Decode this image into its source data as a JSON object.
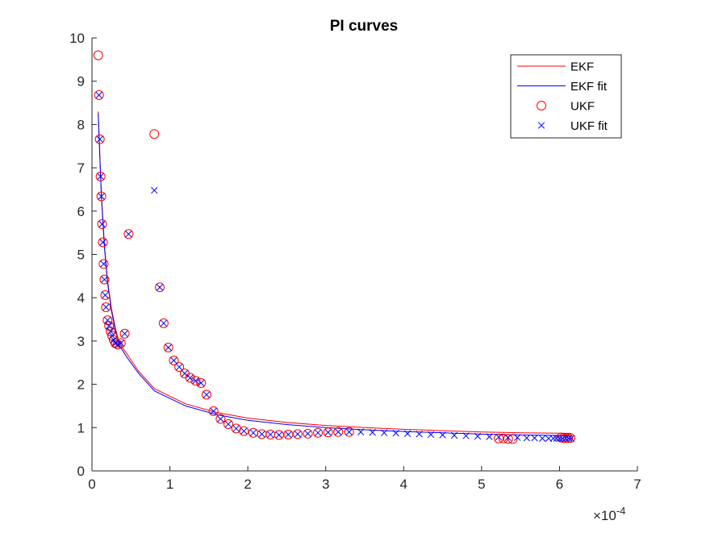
{
  "chart_data": {
    "type": "scatter",
    "title": "PI curves",
    "xlabel": "",
    "ylabel": "",
    "xlim": [
      0,
      7
    ],
    "ylim": [
      0,
      10
    ],
    "x_exponent_label": "×10",
    "x_exponent_power": "-4",
    "x_ticks": [
      0,
      1,
      2,
      3,
      4,
      5,
      6,
      7
    ],
    "y_ticks": [
      0,
      1,
      2,
      3,
      4,
      5,
      6,
      7,
      8,
      9,
      10
    ],
    "grid": false,
    "legend_position": "top-right",
    "series": [
      {
        "name": "EKF",
        "kind": "line",
        "color": "#ff0000",
        "points": [
          [
            0.08,
            8.3
          ],
          [
            0.12,
            6.4
          ],
          [
            0.16,
            5.2
          ],
          [
            0.2,
            4.4
          ],
          [
            0.25,
            3.75
          ],
          [
            0.3,
            3.3
          ],
          [
            0.35,
            2.95
          ],
          [
            0.45,
            2.7
          ],
          [
            0.6,
            2.3
          ],
          [
            0.8,
            1.9
          ],
          [
            1.2,
            1.55
          ],
          [
            1.6,
            1.35
          ],
          [
            2.0,
            1.22
          ],
          [
            2.5,
            1.12
          ],
          [
            3.0,
            1.05
          ],
          [
            3.5,
            1.0
          ],
          [
            4.0,
            0.96
          ],
          [
            4.5,
            0.93
          ],
          [
            5.0,
            0.9
          ],
          [
            5.5,
            0.88
          ],
          [
            6.0,
            0.87
          ],
          [
            6.15,
            0.865
          ]
        ]
      },
      {
        "name": "EKF fit",
        "kind": "line",
        "color": "#0000ff",
        "points": [
          [
            0.08,
            8.25
          ],
          [
            0.12,
            6.35
          ],
          [
            0.16,
            5.15
          ],
          [
            0.2,
            4.35
          ],
          [
            0.25,
            3.7
          ],
          [
            0.3,
            3.25
          ],
          [
            0.35,
            2.9
          ],
          [
            0.45,
            2.62
          ],
          [
            0.6,
            2.25
          ],
          [
            0.8,
            1.85
          ],
          [
            1.2,
            1.5
          ],
          [
            1.6,
            1.3
          ],
          [
            2.0,
            1.17
          ],
          [
            2.5,
            1.07
          ],
          [
            3.0,
            1.0
          ],
          [
            3.5,
            0.95
          ],
          [
            4.0,
            0.91
          ],
          [
            4.5,
            0.88
          ],
          [
            5.0,
            0.85
          ],
          [
            5.5,
            0.83
          ],
          [
            6.0,
            0.82
          ],
          [
            6.15,
            0.815
          ]
        ]
      },
      {
        "name": "UKF",
        "kind": "marker-circle",
        "color": "#ff0000",
        "points": [
          [
            0.08,
            9.6
          ],
          [
            0.09,
            8.68
          ],
          [
            0.1,
            7.66
          ],
          [
            0.11,
            6.8
          ],
          [
            0.12,
            6.34
          ],
          [
            0.13,
            5.7
          ],
          [
            0.14,
            5.28
          ],
          [
            0.15,
            4.78
          ],
          [
            0.16,
            4.42
          ],
          [
            0.17,
            4.06
          ],
          [
            0.18,
            3.78
          ],
          [
            0.2,
            3.48
          ],
          [
            0.22,
            3.35
          ],
          [
            0.24,
            3.22
          ],
          [
            0.26,
            3.12
          ],
          [
            0.28,
            3.02
          ],
          [
            0.3,
            2.95
          ],
          [
            0.33,
            2.92
          ],
          [
            0.37,
            2.95
          ],
          [
            0.42,
            3.17
          ],
          [
            0.47,
            5.47
          ],
          [
            0.8,
            7.78
          ],
          [
            0.87,
            4.24
          ],
          [
            0.92,
            3.41
          ],
          [
            0.98,
            2.85
          ],
          [
            1.05,
            2.55
          ],
          [
            1.12,
            2.4
          ],
          [
            1.19,
            2.25
          ],
          [
            1.26,
            2.15
          ],
          [
            1.33,
            2.08
          ],
          [
            1.4,
            2.03
          ],
          [
            1.47,
            1.76
          ],
          [
            1.56,
            1.38
          ],
          [
            1.65,
            1.2
          ],
          [
            1.75,
            1.08
          ],
          [
            1.85,
            0.98
          ],
          [
            1.95,
            0.92
          ],
          [
            2.07,
            0.88
          ],
          [
            2.18,
            0.85
          ],
          [
            2.29,
            0.84
          ],
          [
            2.4,
            0.83
          ],
          [
            2.52,
            0.84
          ],
          [
            2.64,
            0.85
          ],
          [
            2.77,
            0.86
          ],
          [
            2.9,
            0.88
          ],
          [
            3.03,
            0.89
          ],
          [
            3.16,
            0.9
          ],
          [
            3.3,
            0.9
          ],
          [
            5.22,
            0.75
          ],
          [
            5.28,
            0.75
          ],
          [
            5.34,
            0.74
          ],
          [
            5.4,
            0.74
          ],
          [
            6.02,
            0.77
          ],
          [
            6.05,
            0.76
          ],
          [
            6.08,
            0.76
          ],
          [
            6.11,
            0.76
          ],
          [
            6.14,
            0.76
          ]
        ]
      },
      {
        "name": "UKF fit",
        "kind": "marker-x",
        "color": "#0000ff",
        "points": [
          [
            0.09,
            8.68
          ],
          [
            0.1,
            7.66
          ],
          [
            0.11,
            6.8
          ],
          [
            0.12,
            6.34
          ],
          [
            0.13,
            5.7
          ],
          [
            0.14,
            5.28
          ],
          [
            0.15,
            4.78
          ],
          [
            0.16,
            4.42
          ],
          [
            0.17,
            4.06
          ],
          [
            0.18,
            3.78
          ],
          [
            0.2,
            3.48
          ],
          [
            0.22,
            3.35
          ],
          [
            0.24,
            3.22
          ],
          [
            0.26,
            3.12
          ],
          [
            0.28,
            3.02
          ],
          [
            0.3,
            2.95
          ],
          [
            0.33,
            2.92
          ],
          [
            0.37,
            2.95
          ],
          [
            0.42,
            3.17
          ],
          [
            0.47,
            5.47
          ],
          [
            0.8,
            6.48
          ],
          [
            0.87,
            4.24
          ],
          [
            0.92,
            3.41
          ],
          [
            0.98,
            2.85
          ],
          [
            1.05,
            2.55
          ],
          [
            1.12,
            2.4
          ],
          [
            1.19,
            2.25
          ],
          [
            1.26,
            2.15
          ],
          [
            1.33,
            2.08
          ],
          [
            1.4,
            2.03
          ],
          [
            1.47,
            1.76
          ],
          [
            1.56,
            1.38
          ],
          [
            1.65,
            1.2
          ],
          [
            1.75,
            1.08
          ],
          [
            1.85,
            0.98
          ],
          [
            1.95,
            0.92
          ],
          [
            2.07,
            0.88
          ],
          [
            2.18,
            0.85
          ],
          [
            2.29,
            0.84
          ],
          [
            2.4,
            0.83
          ],
          [
            2.52,
            0.84
          ],
          [
            2.64,
            0.85
          ],
          [
            2.77,
            0.86
          ],
          [
            2.9,
            0.88
          ],
          [
            3.03,
            0.89
          ],
          [
            3.16,
            0.9
          ],
          [
            3.3,
            0.9
          ],
          [
            3.45,
            0.9
          ],
          [
            3.6,
            0.89
          ],
          [
            3.75,
            0.88
          ],
          [
            3.9,
            0.87
          ],
          [
            4.05,
            0.86
          ],
          [
            4.2,
            0.85
          ],
          [
            4.35,
            0.84
          ],
          [
            4.5,
            0.83
          ],
          [
            4.65,
            0.82
          ],
          [
            4.8,
            0.81
          ],
          [
            4.95,
            0.8
          ],
          [
            5.1,
            0.79
          ],
          [
            5.22,
            0.78
          ],
          [
            5.34,
            0.77
          ],
          [
            5.46,
            0.77
          ],
          [
            5.58,
            0.76
          ],
          [
            5.68,
            0.76
          ],
          [
            5.78,
            0.75
          ],
          [
            5.86,
            0.75
          ],
          [
            5.92,
            0.75
          ],
          [
            5.96,
            0.75
          ],
          [
            6.0,
            0.75
          ],
          [
            6.04,
            0.75
          ],
          [
            6.08,
            0.75
          ],
          [
            6.12,
            0.75
          ],
          [
            6.15,
            0.75
          ]
        ]
      }
    ]
  }
}
